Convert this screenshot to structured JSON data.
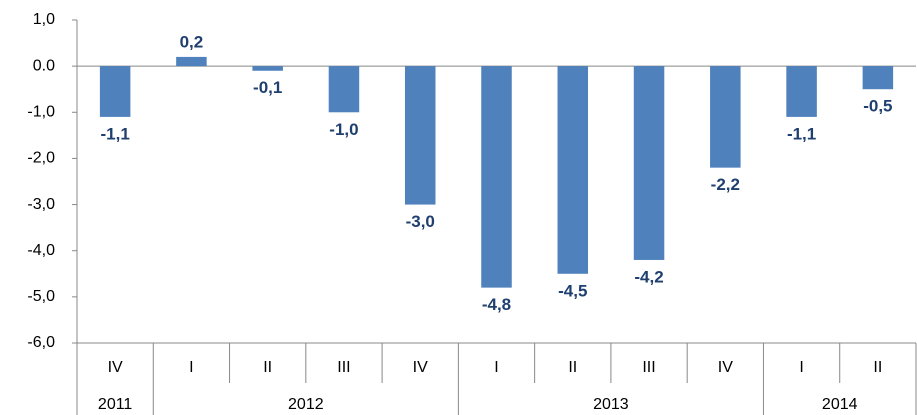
{
  "chart_data": {
    "type": "bar",
    "categories": [
      "IV",
      "I",
      "II",
      "III",
      "IV",
      "I",
      "II",
      "III",
      "IV",
      "I",
      "II"
    ],
    "groups": [
      {
        "name": "2011",
        "count": 1
      },
      {
        "name": "2012",
        "count": 4
      },
      {
        "name": "2013",
        "count": 4
      },
      {
        "name": "2014",
        "count": 2
      }
    ],
    "values": [
      -1.1,
      0.2,
      -0.1,
      -1.0,
      -3.0,
      -4.8,
      -4.5,
      -4.2,
      -2.2,
      -1.1,
      -0.5
    ],
    "value_labels": [
      "-1,1",
      "0,2",
      "-0,1",
      "-1,0",
      "-3,0",
      "-4,8",
      "-4,5",
      "-4,2",
      "-2,2",
      "-1,1",
      "-0,5"
    ],
    "color": "#4f81bd",
    "ylim": [
      -6,
      1
    ],
    "yticks": [
      {
        "value": 1,
        "label": "1,0"
      },
      {
        "value": 0,
        "label": "0.0"
      },
      {
        "value": -1,
        "label": "-1,0"
      },
      {
        "value": -2,
        "label": "-2,0"
      },
      {
        "value": -3,
        "label": "-3,0"
      },
      {
        "value": -4,
        "label": "-4,0"
      },
      {
        "value": -5,
        "label": "-5,0"
      },
      {
        "value": -6,
        "label": "-6,0"
      }
    ],
    "grid": false
  }
}
